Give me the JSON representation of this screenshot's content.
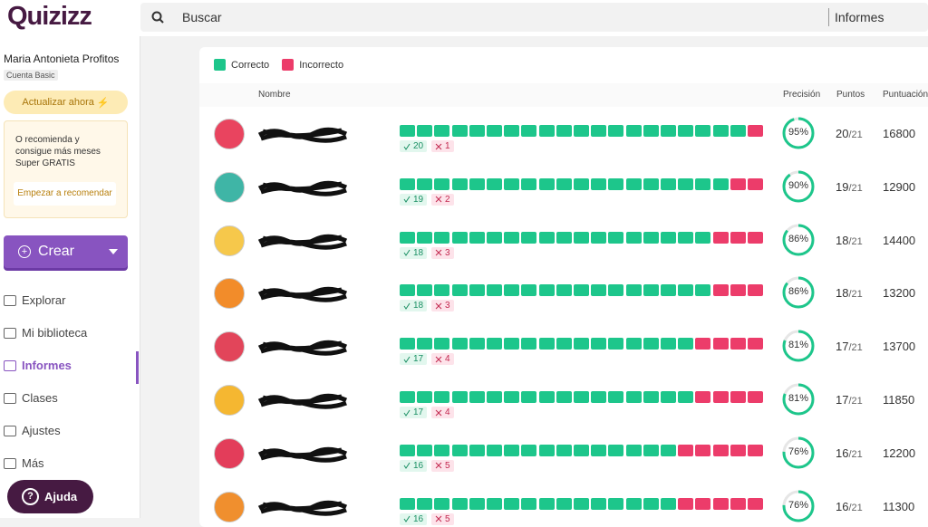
{
  "header": {
    "logo": "Quizizz",
    "search_placeholder": "Buscar",
    "section": "Informes"
  },
  "sidebar": {
    "user_name": "Maria Antonieta Profitos",
    "plan": "Cuenta Basic",
    "upgrade": "Actualizar ahora",
    "promo": "O recomienda y consigue más meses Super GRATIS",
    "promo_link": "Empezar a recomendar",
    "create": "Crear",
    "nav": [
      "Explorar",
      "Mi biblioteca",
      "Informes",
      "Clases",
      "Ajustes",
      "Más"
    ],
    "active_nav": 2,
    "help": "Ajuda"
  },
  "legend": {
    "correct": "Correcto",
    "incorrect": "Incorrecto",
    "correct_color": "#1dc68b",
    "incorrect_color": "#ec3c6a"
  },
  "table": {
    "headers": {
      "name": "Nombre",
      "accuracy": "Precisión",
      "points": "Puntos",
      "score": "Puntuación"
    },
    "rows": [
      {
        "correct": 20,
        "incorrect": 1,
        "accuracy": {
          "value": 95,
          "label": "95%"
        },
        "points": 20,
        "total": "/21",
        "score": 16800
      },
      {
        "correct": 19,
        "incorrect": 2,
        "accuracy": {
          "value": 90,
          "label": "90%"
        },
        "points": 19,
        "total": "/21",
        "score": 12900
      },
      {
        "correct": 18,
        "incorrect": 3,
        "accuracy": {
          "value": 86,
          "label": "86%"
        },
        "points": 18,
        "total": "/21",
        "score": 14400
      },
      {
        "correct": 18,
        "incorrect": 3,
        "accuracy": {
          "value": 86,
          "label": "86%"
        },
        "points": 18,
        "total": "/21",
        "score": 13200
      },
      {
        "correct": 17,
        "incorrect": 4,
        "accuracy": {
          "value": 81,
          "label": "81%"
        },
        "points": 17,
        "total": "/21",
        "score": 13700
      },
      {
        "correct": 17,
        "incorrect": 4,
        "accuracy": {
          "value": 81,
          "label": "81%"
        },
        "points": 17,
        "total": "/21",
        "score": 11850
      },
      {
        "correct": 16,
        "incorrect": 5,
        "accuracy": {
          "value": 76,
          "label": "76%"
        },
        "points": 16,
        "total": "/21",
        "score": 12200
      },
      {
        "correct": 16,
        "incorrect": 5,
        "accuracy": {
          "value": 76,
          "label": "76%"
        },
        "points": 16,
        "total": "/21",
        "score": 11300
      }
    ]
  }
}
